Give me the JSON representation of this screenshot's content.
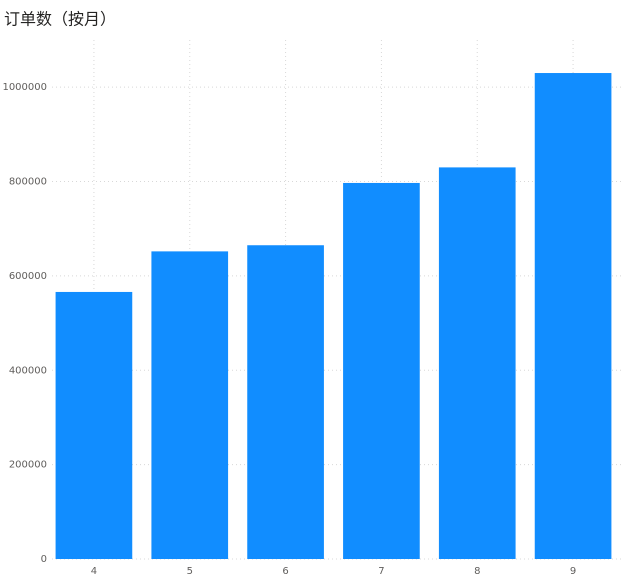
{
  "chart_data": {
    "type": "bar",
    "title": "订单数（按月）",
    "categories": [
      "4",
      "5",
      "6",
      "7",
      "8",
      "9"
    ],
    "values": [
      566000,
      652000,
      665000,
      797000,
      830000,
      1030000
    ],
    "color": "#118dff",
    "ylim": [
      0,
      1100000
    ],
    "yticks": [
      0,
      200000,
      400000,
      600000,
      800000,
      1000000
    ],
    "grid": true
  }
}
